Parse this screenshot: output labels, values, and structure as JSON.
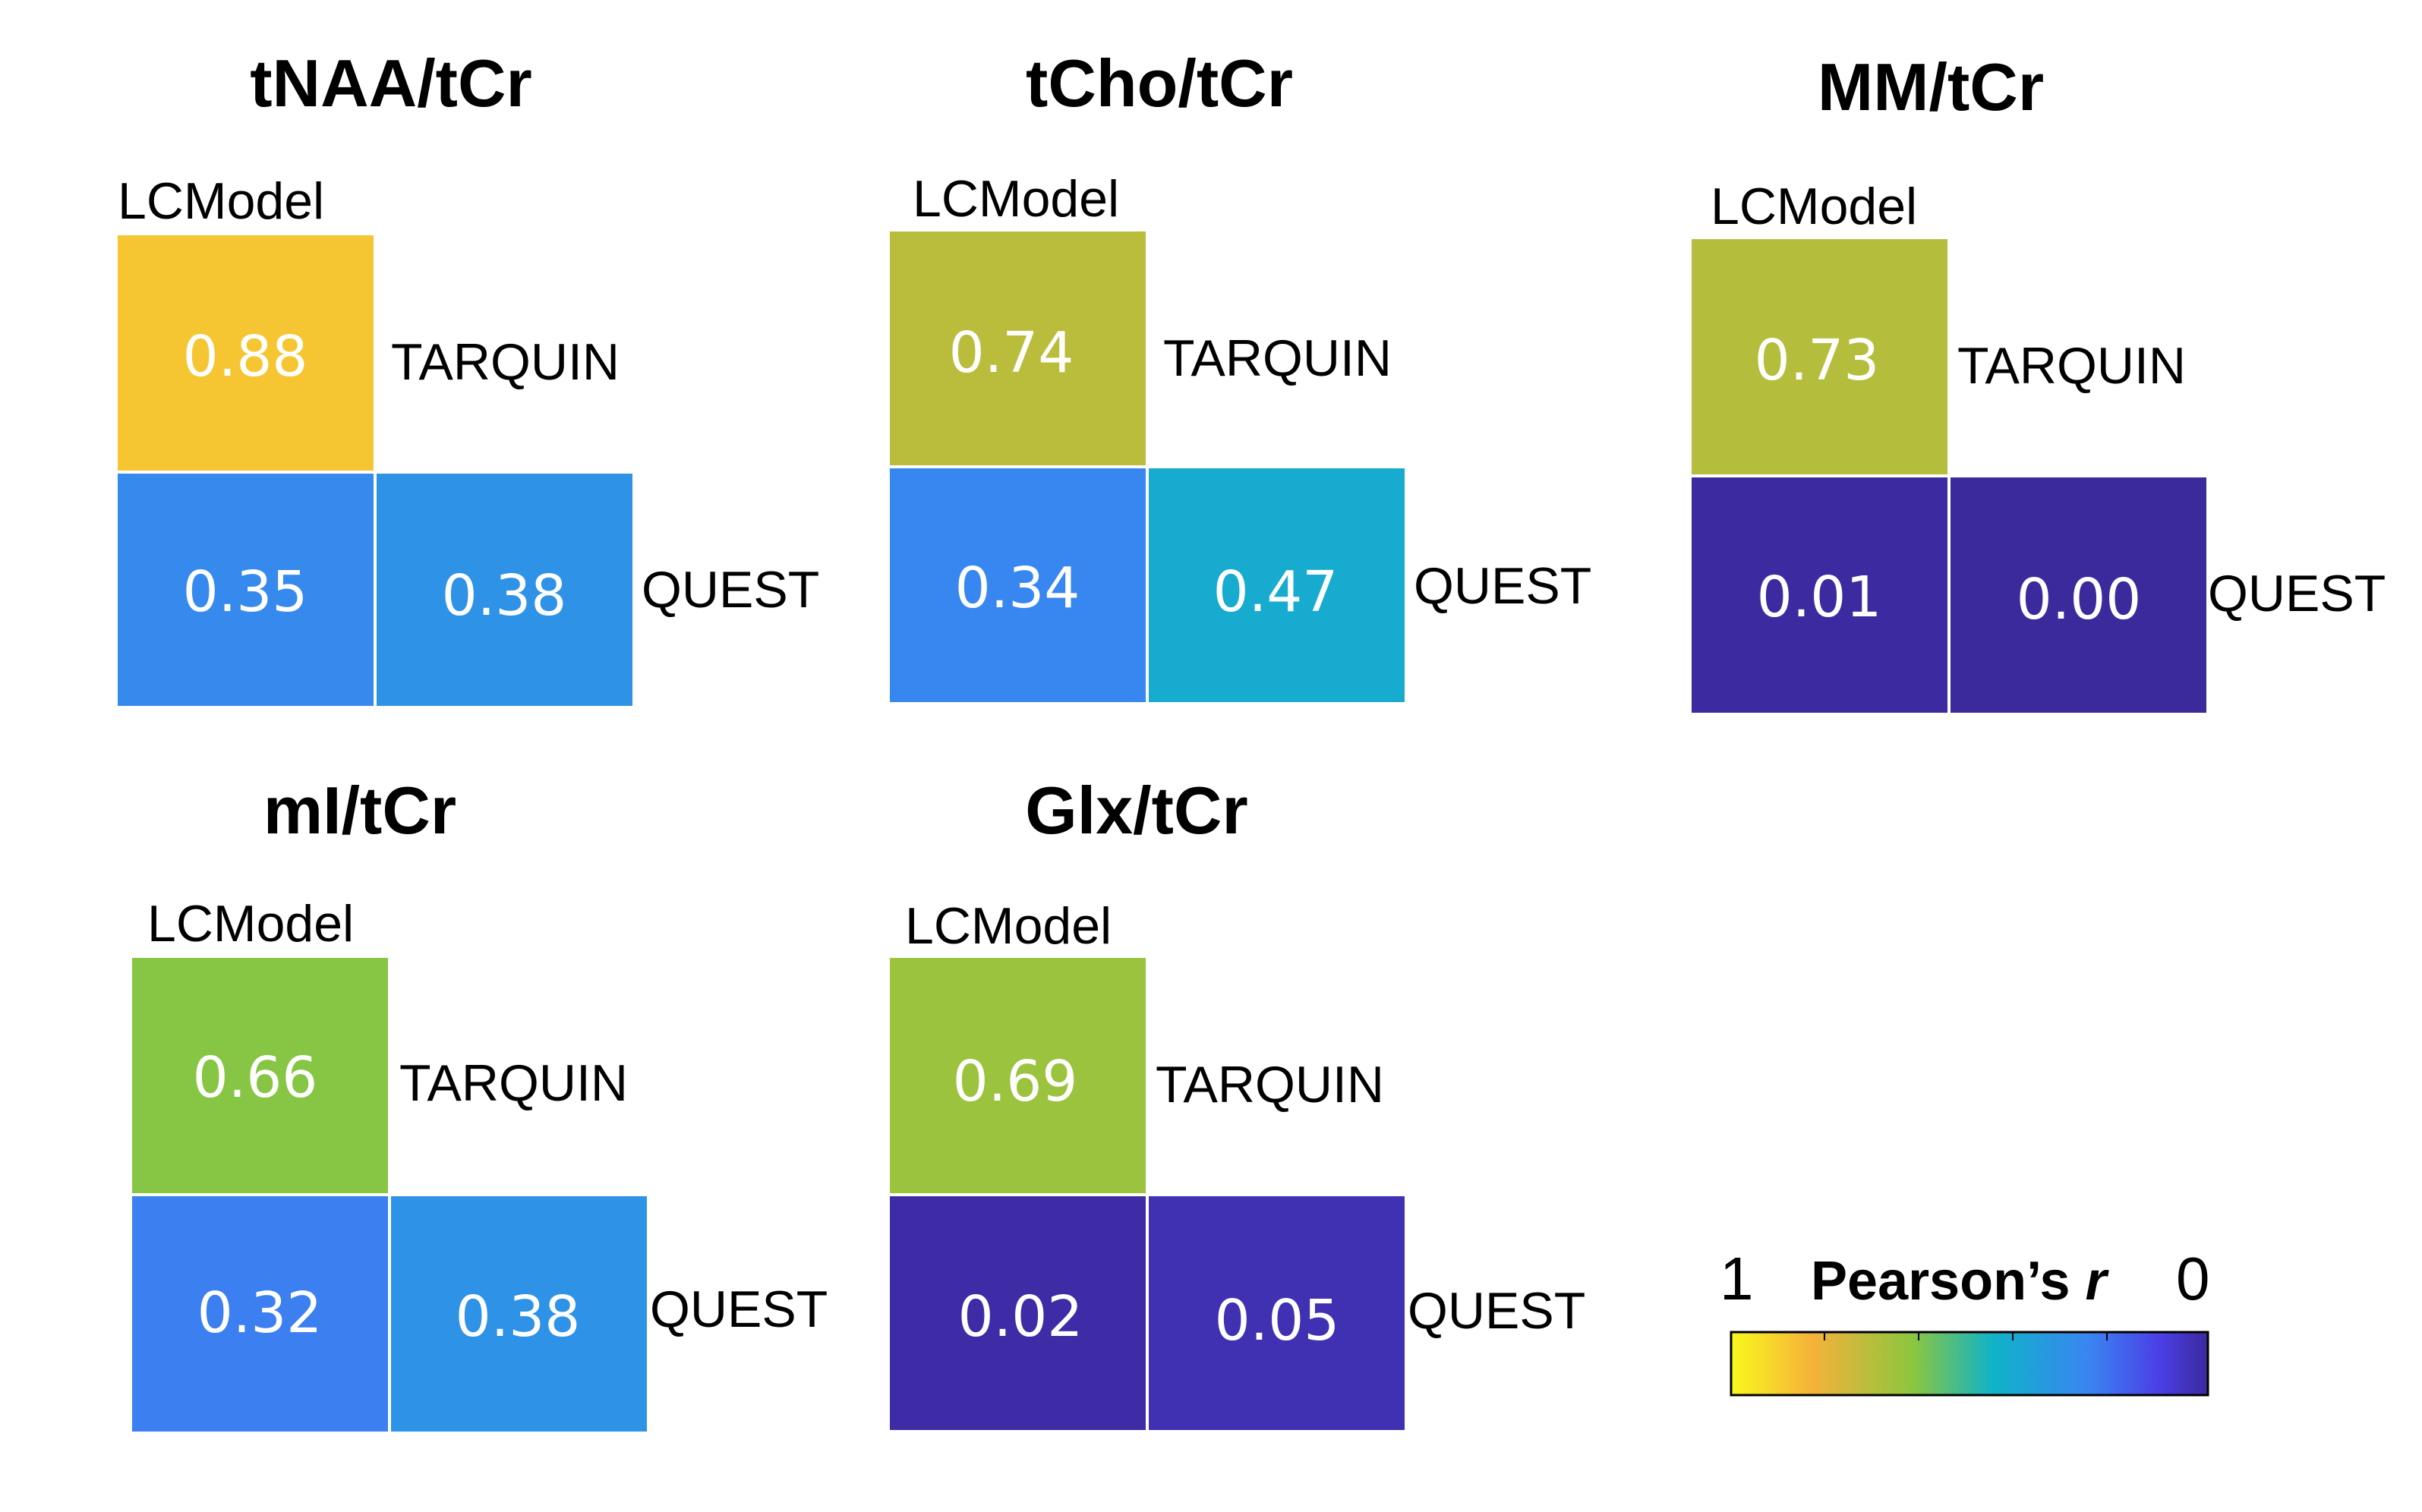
{
  "chart_data": [
    {
      "type": "heatmap",
      "title": "tNAA/tCr",
      "methods": [
        "LCModel",
        "TARQUIN",
        "QUEST"
      ],
      "pairs": [
        {
          "row": "LCModel",
          "col": "TARQUIN",
          "value": "0.88"
        },
        {
          "row": "LCModel",
          "col": "QUEST",
          "value": "0.35"
        },
        {
          "row": "TARQUIN",
          "col": "QUEST",
          "value": "0.38"
        }
      ]
    },
    {
      "type": "heatmap",
      "title": "tCho/tCr",
      "methods": [
        "LCModel",
        "TARQUIN",
        "QUEST"
      ],
      "pairs": [
        {
          "row": "LCModel",
          "col": "TARQUIN",
          "value": "0.74"
        },
        {
          "row": "LCModel",
          "col": "QUEST",
          "value": "0.34"
        },
        {
          "row": "TARQUIN",
          "col": "QUEST",
          "value": "0.47"
        }
      ]
    },
    {
      "type": "heatmap",
      "title": "MM/tCr",
      "methods": [
        "LCModel",
        "TARQUIN",
        "QUEST"
      ],
      "pairs": [
        {
          "row": "LCModel",
          "col": "TARQUIN",
          "value": "0.73"
        },
        {
          "row": "LCModel",
          "col": "QUEST",
          "value": "0.01"
        },
        {
          "row": "TARQUIN",
          "col": "QUEST",
          "value": "0.00"
        }
      ]
    },
    {
      "type": "heatmap",
      "title": "mI/tCr",
      "methods": [
        "LCModel",
        "TARQUIN",
        "QUEST"
      ],
      "pairs": [
        {
          "row": "LCModel",
          "col": "TARQUIN",
          "value": "0.66"
        },
        {
          "row": "LCModel",
          "col": "QUEST",
          "value": "0.32"
        },
        {
          "row": "TARQUIN",
          "col": "QUEST",
          "value": "0.38"
        }
      ]
    },
    {
      "type": "heatmap",
      "title": "Glx/tCr",
      "methods": [
        "LCModel",
        "TARQUIN",
        "QUEST"
      ],
      "pairs": [
        {
          "row": "LCModel",
          "col": "TARQUIN",
          "value": "0.69"
        },
        {
          "row": "LCModel",
          "col": "QUEST",
          "value": "0.02"
        },
        {
          "row": "TARQUIN",
          "col": "QUEST",
          "value": "0.05"
        }
      ]
    }
  ],
  "colorbar": {
    "title": "Pearson’s",
    "title_italic": "r",
    "max_label": "1",
    "min_label": "0",
    "range": [
      1,
      0
    ],
    "colormap": [
      "#f8f81c",
      "#f5b23a",
      "#8cc63e",
      "#0fb3c8",
      "#3a85f2",
      "#4b3ee6",
      "#3b2a9c"
    ]
  }
}
